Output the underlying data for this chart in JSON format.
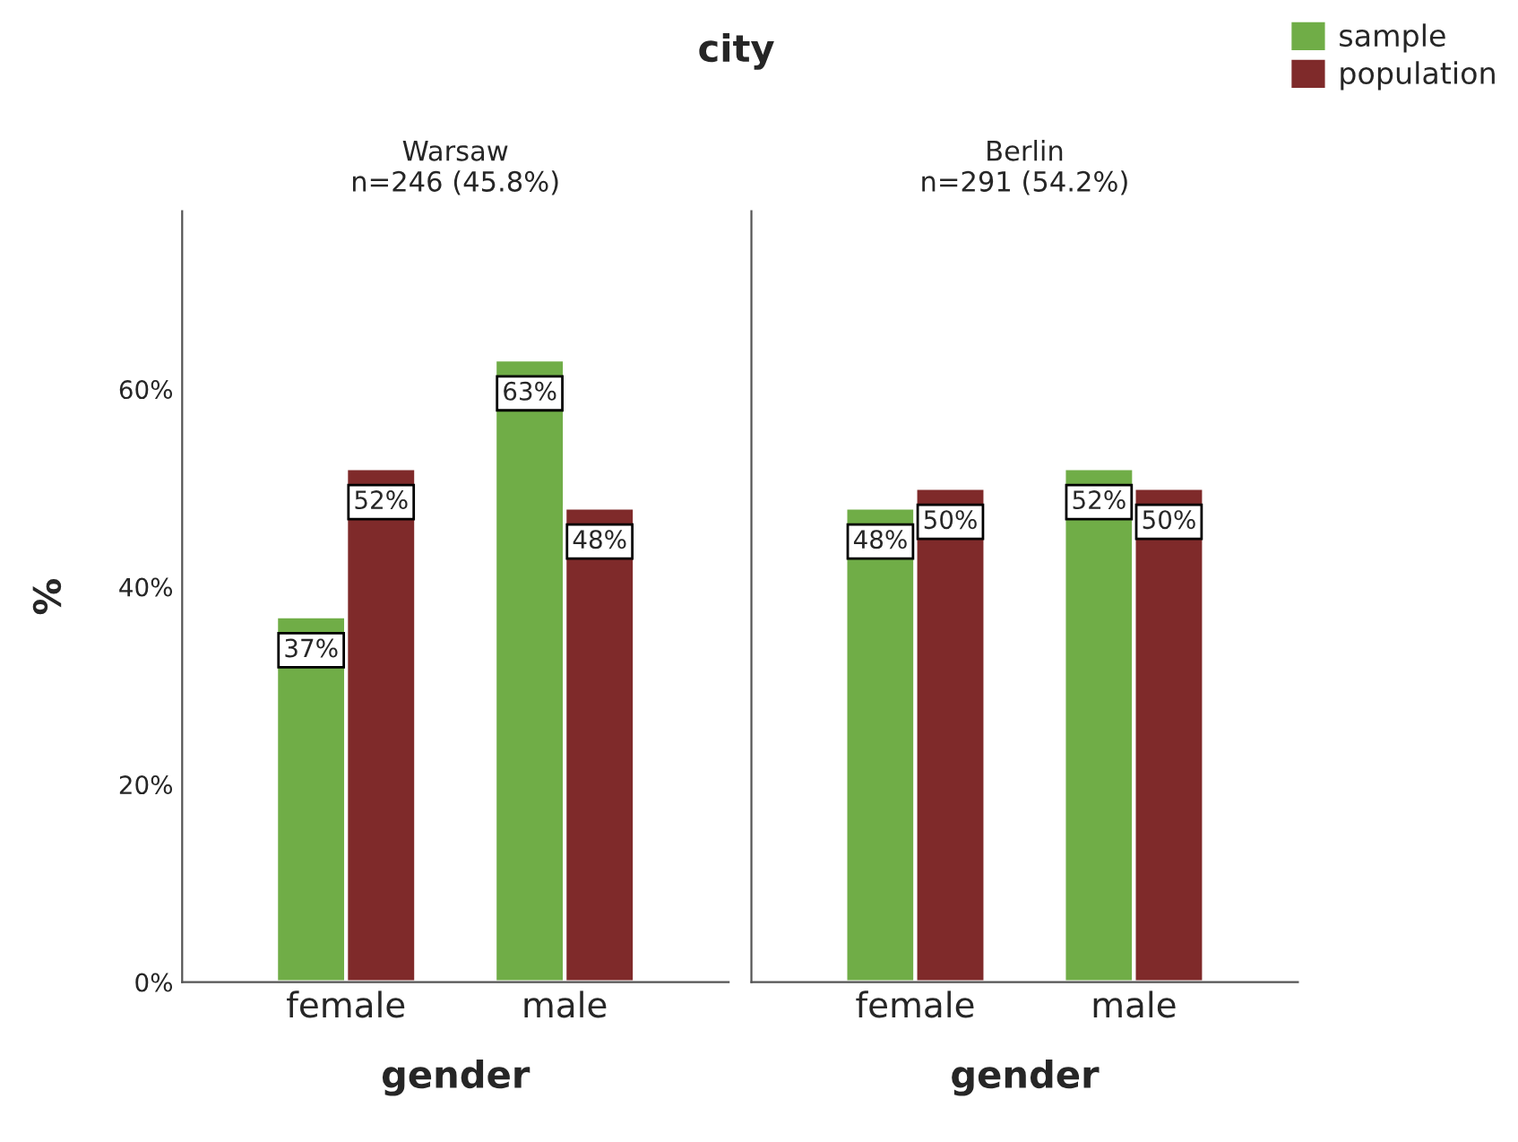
{
  "chart_data": [
    {
      "type": "bar",
      "title": "city",
      "subtitle": "Warsaw\nn=246 (45.8%)",
      "xlabel": "gender",
      "ylabel": "%",
      "categories": [
        "female",
        "male"
      ],
      "series": [
        {
          "name": "sample",
          "color": "#70ad47",
          "values": [
            37,
            63
          ],
          "value_labels": [
            "37%",
            "63%"
          ]
        },
        {
          "name": "population",
          "color": "#7f2a2a",
          "values": [
            52,
            48
          ],
          "value_labels": [
            "52%",
            "48%"
          ]
        }
      ],
      "ylim": [
        0,
        78
      ],
      "yticks": [
        {
          "value": 0,
          "label": "0%"
        },
        {
          "value": 20,
          "label": "20%"
        },
        {
          "value": 40,
          "label": "40%"
        },
        {
          "value": 60,
          "label": "60%"
        }
      ],
      "legend": "top right",
      "grid": false
    },
    {
      "type": "bar",
      "subtitle": "Berlin\nn=291 (54.2%)",
      "xlabel": "gender",
      "categories": [
        "female",
        "male"
      ],
      "series": [
        {
          "color": "#70ad47",
          "values": [
            48,
            52
          ],
          "value_labels": [
            "48%",
            "52%"
          ]
        },
        {
          "color": "#7f2a2a",
          "values": [
            50,
            50
          ],
          "value_labels": [
            "50%",
            "50%"
          ]
        }
      ],
      "ylim": [
        0,
        78
      ],
      "tick_labels": "x",
      "grid": false
    }
  ]
}
